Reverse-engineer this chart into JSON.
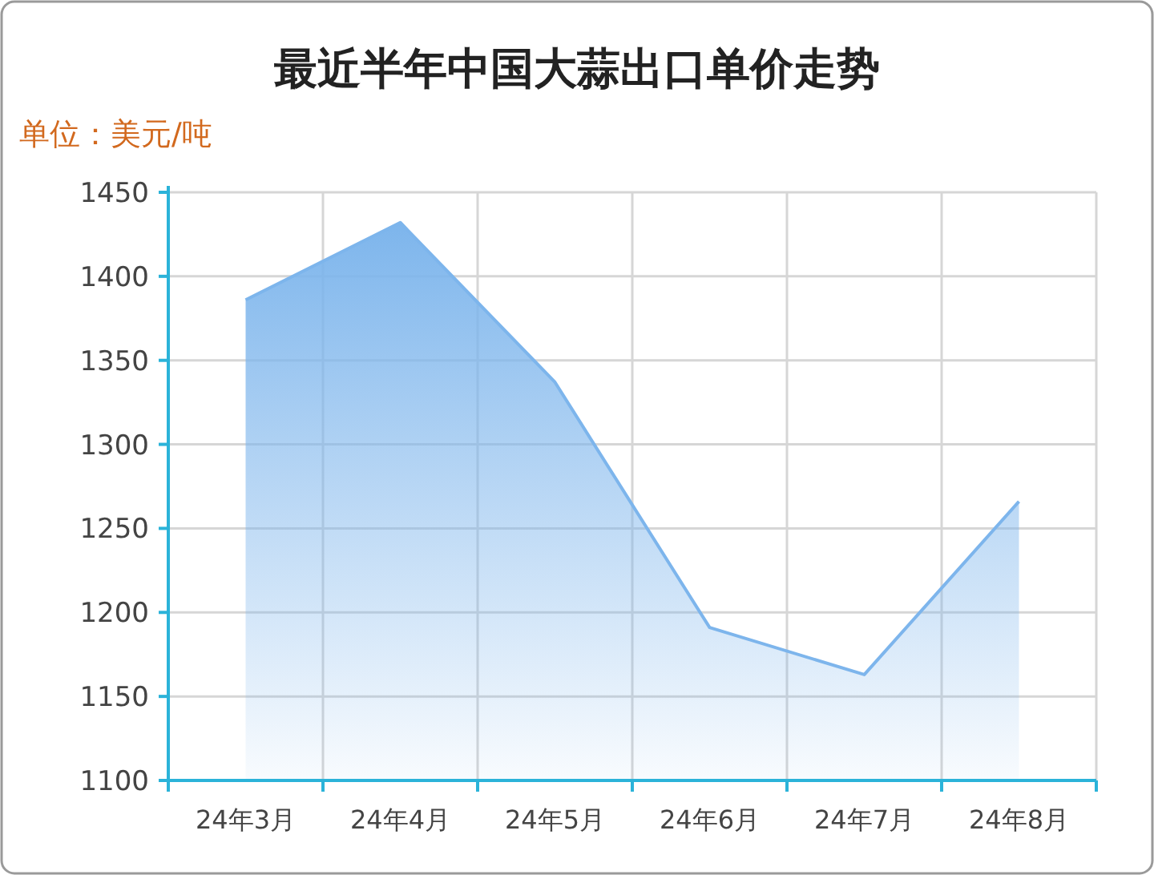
{
  "chart_data": {
    "type": "area",
    "title": "最近半年中国大蒜出口单价走势",
    "ylabel": "单位：美元/吨",
    "categories": [
      "24年3月",
      "24年4月",
      "24年5月",
      "24年6月",
      "24年7月",
      "24年8月"
    ],
    "values": [
      1386,
      1432,
      1337,
      1191,
      1163,
      1266
    ],
    "color": "#7db5ec",
    "ylim": [
      1100,
      1450
    ],
    "yticks": [
      1100,
      1150,
      1200,
      1250,
      1300,
      1350,
      1400,
      1450
    ],
    "grid": true
  }
}
